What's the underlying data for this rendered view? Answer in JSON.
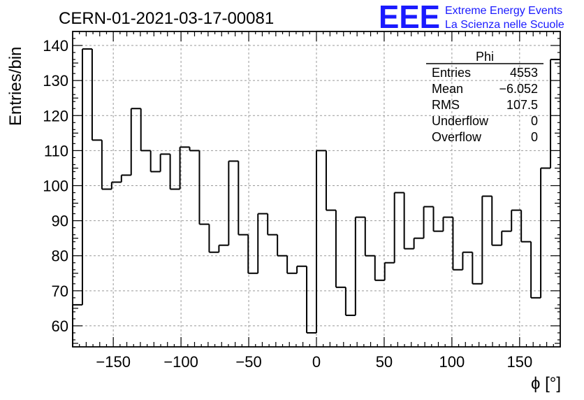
{
  "chart_data": {
    "type": "bar",
    "style": "step-histogram",
    "title": "CERN-01-2021-03-17-00081",
    "xlabel": "ϕ [°]",
    "ylabel": "Entries/bin",
    "xlim": [
      -180,
      180
    ],
    "ylim": [
      54,
      144
    ],
    "grid": true,
    "bin_width": 7.2,
    "x_ticks": [
      -150,
      -100,
      -50,
      0,
      50,
      100,
      150
    ],
    "x_tick_labels": [
      "−150",
      "−100",
      "−50",
      "0",
      "50",
      "100",
      "150"
    ],
    "y_ticks": [
      60,
      70,
      80,
      90,
      100,
      110,
      120,
      130,
      140
    ],
    "y_tick_labels": [
      "60",
      "70",
      "80",
      "90",
      "100",
      "110",
      "120",
      "130",
      "140"
    ],
    "bin_low_edges": [
      -180,
      -172.8,
      -165.6,
      -158.4,
      -151.2,
      -144,
      -136.8,
      -129.6,
      -122.4,
      -115.2,
      -108,
      -100.8,
      -93.6,
      -86.4,
      -79.2,
      -72,
      -64.8,
      -57.6,
      -50.4,
      -43.2,
      -36,
      -28.8,
      -21.6,
      -14.4,
      -7.2,
      0,
      7.2,
      14.4,
      21.6,
      28.8,
      36,
      43.2,
      50.4,
      57.6,
      64.8,
      72,
      79.2,
      86.4,
      93.6,
      100.8,
      108,
      115.2,
      122.4,
      129.6,
      136.8,
      144,
      151.2,
      158.4,
      165.6,
      172.8
    ],
    "values": [
      66,
      139,
      113,
      99,
      101,
      103,
      122,
      110,
      104,
      109,
      99,
      111,
      110,
      89,
      81,
      83,
      107,
      86,
      75,
      92,
      86,
      80,
      75,
      77,
      58,
      110,
      93,
      71,
      63,
      91,
      80,
      73,
      78,
      98,
      82,
      85,
      94,
      87,
      91,
      76,
      81,
      72,
      97,
      83,
      87,
      93,
      84,
      68,
      105,
      136
    ],
    "stats": {
      "title": "Phi",
      "rows": [
        {
          "label": "Entries",
          "value": "4553"
        },
        {
          "label": "Mean",
          "value": "−6.052"
        },
        {
          "label": "RMS",
          "value": "107.5"
        },
        {
          "label": "Underflow",
          "value": "0"
        },
        {
          "label": "Overflow",
          "value": "0"
        }
      ]
    },
    "colors": {
      "line": "#000000",
      "grid": "#999999",
      "logo": "#1a1aff"
    }
  },
  "logo": {
    "mark": "EEE",
    "line1": "Extreme Energy Events",
    "line2": "La Scienza nelle Scuole"
  }
}
